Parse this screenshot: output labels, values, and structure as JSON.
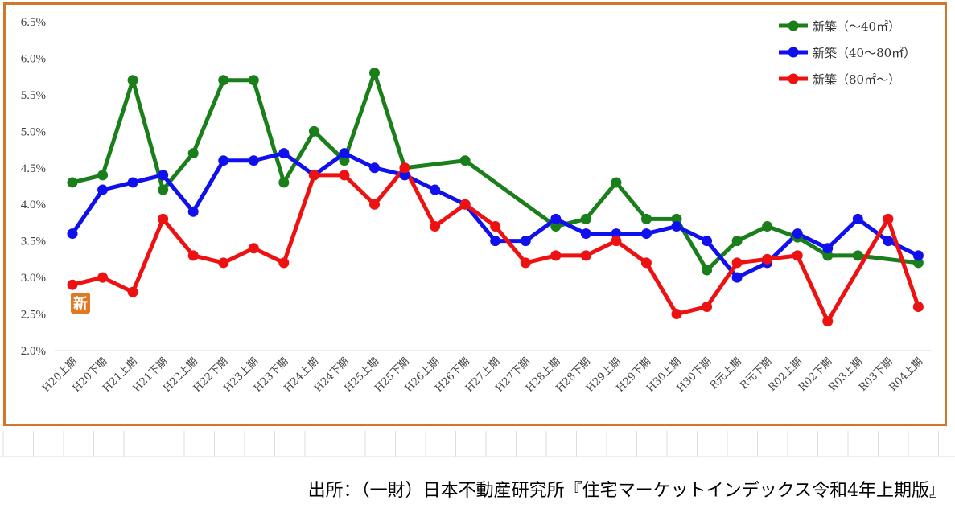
{
  "chart_data": {
    "type": "line",
    "x": [
      "H20上期",
      "H20下期",
      "H21上期",
      "H21下期",
      "H22上期",
      "H22下期",
      "H23上期",
      "H23下期",
      "H24上期",
      "H24下期",
      "H25上期",
      "H25下期",
      "H26上期",
      "H26下期",
      "H27上期",
      "H27下期",
      "H28上期",
      "H28下期",
      "H29上期",
      "H29下期",
      "H30上期",
      "H30下期",
      "R元上期",
      "R元下期",
      "R02上期",
      "R02下期",
      "R03上期",
      "R03下期",
      "R04上期"
    ],
    "yticks": [
      "2.0%",
      "2.5%",
      "3.0%",
      "3.5%",
      "4.0%",
      "4.5%",
      "5.0%",
      "5.5%",
      "6.0%",
      "6.5%"
    ],
    "ylim": [
      2.0,
      6.5
    ],
    "grid": "horizontal-baseline-only",
    "legend_position": "top-right",
    "series": [
      {
        "name": "新築（～40㎡）",
        "color": "#1a7f1a",
        "values": [
          4.3,
          4.4,
          5.7,
          4.2,
          4.7,
          5.7,
          5.7,
          4.3,
          5.0,
          4.6,
          5.8,
          4.5,
          null,
          4.6,
          null,
          null,
          3.7,
          3.8,
          4.3,
          3.8,
          3.8,
          3.1,
          3.5,
          3.7,
          3.55,
          3.3,
          3.3,
          null,
          3.2
        ]
      },
      {
        "name": "新築（40～80㎡）",
        "color": "#1010ee",
        "values": [
          3.6,
          4.2,
          4.3,
          4.4,
          3.9,
          4.6,
          4.6,
          4.7,
          4.4,
          4.7,
          4.5,
          4.4,
          4.2,
          4.0,
          3.5,
          3.5,
          3.8,
          3.6,
          3.6,
          3.6,
          3.7,
          3.5,
          3.0,
          3.2,
          3.6,
          3.4,
          3.8,
          3.5,
          3.3
        ]
      },
      {
        "name": "新築（80㎡～）",
        "color": "#ee1111",
        "values": [
          2.9,
          3.0,
          2.8,
          3.8,
          3.3,
          3.2,
          3.4,
          3.2,
          4.4,
          4.4,
          4.0,
          4.5,
          3.7,
          4.0,
          3.7,
          3.2,
          3.3,
          3.3,
          3.5,
          3.2,
          2.5,
          2.6,
          3.2,
          3.25,
          3.3,
          2.4,
          null,
          3.8,
          2.6
        ]
      }
    ],
    "badge": "新"
  },
  "source_text": "出所：（一財）日本不動産研究所『住宅マーケットインデックス令和4年上期版』"
}
